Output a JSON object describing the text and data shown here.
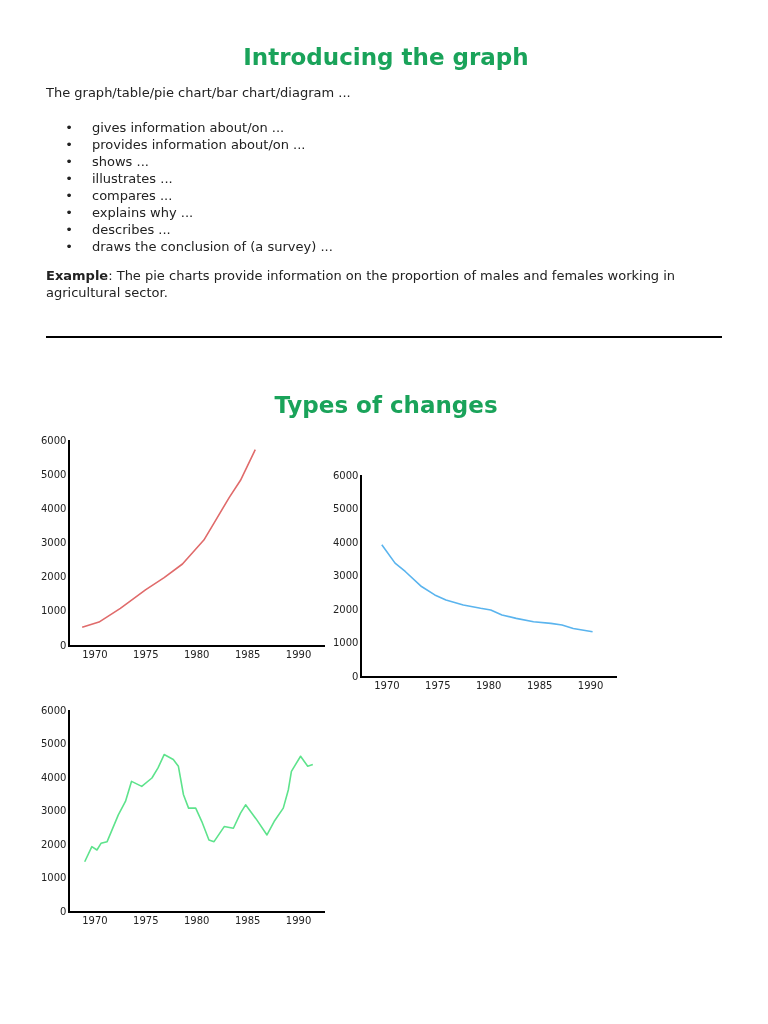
{
  "chart_data": [
    {
      "type": "other",
      "title": "Introducing the graph",
      "annotations": [
        "The graph/table/pie chart/bar chart/diagram ...",
        "• gives information about/on ...",
        "• provides information about/on ...",
        "• shows ...",
        "• illustrates ...",
        "• compares ...",
        "• explains why ...",
        "• describes ...",
        "• draws the conclusion of (a survey) ...",
        "Example: The pie charts provide information on the proportion of males and females working in agricultural sector."
      ]
    },
    {
      "type": "other",
      "title": "Types of changes"
    },
    {
      "type": "line",
      "x": [
        1968.75,
        1970.4,
        1972.5,
        1975,
        1976.8,
        1978.6,
        1980.7,
        1981.8,
        1983.2,
        1984.3,
        1985.75
      ],
      "series": [
        {
          "color": "#e06b6b",
          "values": [
            550,
            700,
            1100,
            1650,
            2000,
            2400,
            3100,
            3650,
            4350,
            4850,
            5750
          ]
        }
      ],
      "xlim": [
        1967.5,
        1992.5
      ],
      "xticks": [
        1970,
        1975,
        1980,
        1985,
        1990
      ],
      "ylim": [
        0,
        6000
      ],
      "yticks": [
        0,
        1000,
        2000,
        3000,
        4000,
        5000,
        6000
      ],
      "grid": false,
      "legend": false
    },
    {
      "type": "line",
      "x": [
        1969.5,
        1970.8,
        1971.8,
        1973.4,
        1974.7,
        1975.8,
        1977.5,
        1979.2,
        1980.2,
        1981.3,
        1982.7,
        1984.4,
        1986.1,
        1987.2,
        1988.3,
        1990.2
      ],
      "series": [
        {
          "color": "#5ab4ee",
          "values": [
            3950,
            3400,
            3150,
            2700,
            2450,
            2300,
            2150,
            2050,
            2000,
            1850,
            1750,
            1650,
            1600,
            1550,
            1450,
            1350
          ]
        }
      ],
      "xlim": [
        1967.5,
        1992.5
      ],
      "xticks": [
        1970,
        1975,
        1980,
        1985,
        1990
      ],
      "ylim": [
        0,
        6000
      ],
      "yticks": [
        0,
        1000,
        2000,
        3000,
        4000,
        5000,
        6000
      ],
      "grid": false,
      "legend": false
    },
    {
      "type": "line",
      "x": [
        1969,
        1969.7,
        1970.2,
        1970.6,
        1971.2,
        1972.3,
        1973,
        1973.6,
        1974.6,
        1975.6,
        1976.2,
        1976.8,
        1977.7,
        1978.2,
        1978.7,
        1979.2,
        1979.9,
        1980.5,
        1981.2,
        1981.7,
        1982.7,
        1983.6,
        1984.3,
        1984.8,
        1985.9,
        1986.9,
        1987.6,
        1988.5,
        1989,
        1989.3,
        1990.2,
        1990.9,
        1991.4
      ],
      "series": [
        {
          "color": "#5ee38c",
          "values": [
            1500,
            1950,
            1850,
            2050,
            2100,
            2900,
            3300,
            3900,
            3750,
            4000,
            4300,
            4700,
            4550,
            4350,
            3500,
            3100,
            3100,
            2700,
            2150,
            2100,
            2550,
            2500,
            2950,
            3200,
            2750,
            2300,
            2700,
            3100,
            3650,
            4200,
            4650,
            4350,
            4400
          ]
        }
      ],
      "xlim": [
        1967.5,
        1992.5
      ],
      "xticks": [
        1970,
        1975,
        1980,
        1985,
        1990
      ],
      "ylim": [
        0,
        6000
      ],
      "yticks": [
        0,
        1000,
        2000,
        3000,
        4000,
        5000,
        6000
      ],
      "grid": false,
      "legend": false
    }
  ]
}
